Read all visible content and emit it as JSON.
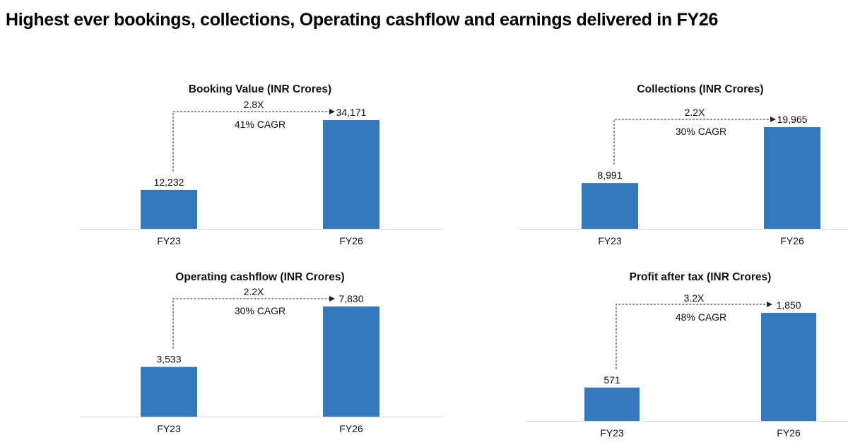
{
  "page": {
    "title": "Highest ever bookings, collections, Operating cashflow and earnings delivered in FY26"
  },
  "colors": {
    "bar": "#3578bd",
    "axis": "#d9d9d9",
    "text": "#111111"
  },
  "chart_data": [
    {
      "type": "bar",
      "title": "Booking Value (INR Crores)",
      "categories": [
        "FY23",
        "FY26"
      ],
      "values": [
        12232,
        34171
      ],
      "value_labels": [
        "12,232",
        "34,171"
      ],
      "growth_multiple": "2.8X",
      "cagr": "41% CAGR"
    },
    {
      "type": "bar",
      "title": "Collections (INR Crores)",
      "categories": [
        "FY23",
        "FY26"
      ],
      "values": [
        8991,
        19965
      ],
      "value_labels": [
        "8,991",
        "19,965"
      ],
      "growth_multiple": "2.2X",
      "cagr": "30% CAGR"
    },
    {
      "type": "bar",
      "title": "Operating cashflow (INR Crores)",
      "categories": [
        "FY23",
        "FY26"
      ],
      "values": [
        3533,
        7830
      ],
      "value_labels": [
        "3,533",
        "7,830"
      ],
      "growth_multiple": "2.2X",
      "cagr": "30% CAGR"
    },
    {
      "type": "bar",
      "title": "Profit after tax (INR Crores)",
      "categories": [
        "FY23",
        "FY26"
      ],
      "values": [
        571,
        1850
      ],
      "value_labels": [
        "571",
        "1,850"
      ],
      "growth_multiple": "3.2X",
      "cagr": "48% CAGR"
    }
  ]
}
